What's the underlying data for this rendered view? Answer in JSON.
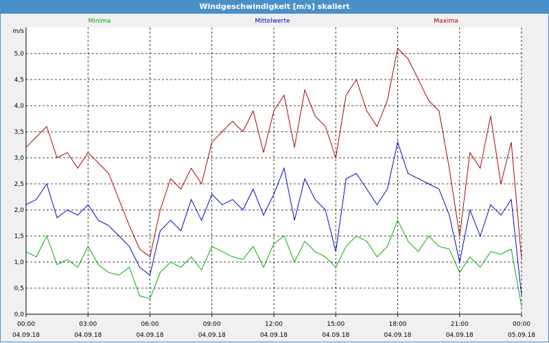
{
  "window": {
    "title": "Windgeschwindigkeit [m/s] skaliert",
    "accent": "#4a90c8"
  },
  "chart_data": {
    "type": "line",
    "title": "Windgeschwindigkeit [m/s] skaliert",
    "ylabel": "m/s",
    "xlabel": "",
    "ylim": [
      0,
      5.5
    ],
    "grid": true,
    "legend_position": "top",
    "y_ticks": [
      "0,0",
      "0,5",
      "1,0",
      "1,5",
      "2,0",
      "2,5",
      "3,0",
      "3,5",
      "4,0",
      "4,5",
      "5,0"
    ],
    "x_ticks": [
      {
        "time": "00:00",
        "date": "04.09.18"
      },
      {
        "time": "03:00",
        "date": "04.09.18"
      },
      {
        "time": "06:00",
        "date": "04.09.18"
      },
      {
        "time": "09:00",
        "date": "04.09.18"
      },
      {
        "time": "12:00",
        "date": "04.09.18"
      },
      {
        "time": "15:00",
        "date": "04.09.18"
      },
      {
        "time": "18:00",
        "date": "04.09.18"
      },
      {
        "time": "21:00",
        "date": "04.09.18"
      },
      {
        "time": "00:00",
        "date": "05.09.18"
      }
    ],
    "x_hours": [
      0,
      0.5,
      1,
      1.5,
      2,
      2.5,
      3,
      3.5,
      4,
      4.5,
      5,
      5.5,
      6,
      6.5,
      7,
      7.5,
      8,
      8.5,
      9,
      9.5,
      10,
      10.5,
      11,
      11.5,
      12,
      12.5,
      13,
      13.5,
      14,
      14.5,
      15,
      15.5,
      16,
      16.5,
      17,
      17.5,
      18,
      18.5,
      19,
      19.5,
      20,
      20.5,
      21,
      21.5,
      22,
      22.5,
      23,
      23.5,
      24
    ],
    "series": [
      {
        "name": "Minima",
        "color": "#00aa00",
        "values": [
          1.2,
          1.1,
          1.5,
          0.95,
          1.05,
          0.9,
          1.3,
          0.95,
          0.8,
          0.75,
          0.9,
          0.35,
          0.3,
          0.8,
          1.0,
          0.9,
          1.1,
          0.85,
          1.3,
          1.2,
          1.1,
          1.05,
          1.3,
          0.9,
          1.35,
          1.5,
          1.0,
          1.4,
          1.2,
          1.1,
          0.9,
          1.3,
          1.5,
          1.4,
          1.1,
          1.3,
          1.8,
          1.4,
          1.2,
          1.5,
          1.3,
          1.25,
          0.8,
          1.1,
          0.9,
          1.2,
          1.15,
          1.25,
          0.15
        ]
      },
      {
        "name": "Mittelwerte",
        "color": "#0000cc",
        "values": [
          2.1,
          2.2,
          2.5,
          1.85,
          2.0,
          1.9,
          2.1,
          1.8,
          1.7,
          1.5,
          1.3,
          0.9,
          0.75,
          1.6,
          1.8,
          1.6,
          2.2,
          1.8,
          2.3,
          2.1,
          2.2,
          2.0,
          2.4,
          1.9,
          2.3,
          2.8,
          1.8,
          2.6,
          2.2,
          2.0,
          1.2,
          2.6,
          2.7,
          2.4,
          2.1,
          2.4,
          3.3,
          2.7,
          2.6,
          2.5,
          2.4,
          1.9,
          1.0,
          2.0,
          1.5,
          2.1,
          1.9,
          2.2,
          0.35
        ]
      },
      {
        "name": "Maxima",
        "color": "#aa0000",
        "values": [
          3.2,
          3.4,
          3.6,
          3.0,
          3.1,
          2.8,
          3.1,
          2.9,
          2.7,
          2.2,
          1.7,
          1.25,
          1.1,
          2.0,
          2.6,
          2.4,
          2.8,
          2.5,
          3.3,
          3.5,
          3.7,
          3.5,
          3.9,
          3.1,
          3.9,
          4.2,
          3.2,
          4.3,
          3.8,
          3.6,
          3.0,
          4.2,
          4.5,
          3.9,
          3.6,
          4.1,
          5.1,
          4.9,
          4.5,
          4.1,
          3.9,
          2.8,
          1.5,
          3.1,
          2.8,
          3.8,
          2.5,
          3.3,
          1.05
        ]
      }
    ]
  }
}
